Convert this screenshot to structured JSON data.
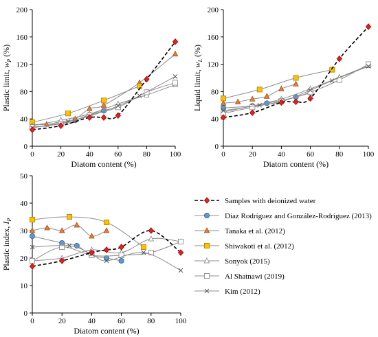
{
  "series_styles": [
    {
      "name": "Samples with deionized water",
      "color": "#000000",
      "marker_fill": "#e8201e",
      "marker_stroke": "#a00000",
      "marker": "diamond",
      "dashed": true
    },
    {
      "name": "Díaz Rodríguez and González-Rodríguez (2013)",
      "color": "#8c8c8c",
      "marker_fill": "#5b9bd5",
      "marker_stroke": "#2e5f8f",
      "marker": "circle",
      "dashed": false
    },
    {
      "name": "Tanaka et al. (2012)",
      "color": "#8c8c8c",
      "marker_fill": "#ed7d31",
      "marker_stroke": "#9c4a14",
      "marker": "triangle",
      "dashed": false
    },
    {
      "name": "Shiwakoti et al. (2012)",
      "color": "#8c8c8c",
      "marker_fill": "#ffc000",
      "marker_stroke": "#b07f00",
      "marker": "square",
      "dashed": false
    },
    {
      "name": "Sonyok (2015)",
      "color": "#8c8c8c",
      "marker_fill": "#ffffff",
      "marker_stroke": "#7f7f7f",
      "marker": "triangle-open",
      "dashed": false
    },
    {
      "name": "Al Shatnawi (2019)",
      "color": "#8c8c8c",
      "marker_fill": "#ffffff",
      "marker_stroke": "#7f7f7f",
      "marker": "square-open",
      "dashed": false
    },
    {
      "name": "Kim (2012)",
      "color": "#8c8c8c",
      "marker_fill": "none",
      "marker_stroke": "#595959",
      "marker": "x",
      "dashed": false
    }
  ],
  "chart_data": [
    {
      "type": "line",
      "xlabel": "Diatom content (%)",
      "ylabel_main": "Plastic limit, ",
      "ylabel_symbol": "w",
      "ylabel_sub": "P",
      "ylabel_unit": " (%)",
      "xlim": [
        0,
        100
      ],
      "ylim": [
        0,
        200
      ],
      "xticks": [
        "0",
        "20",
        "40",
        "60",
        "80",
        "100"
      ],
      "yticks": [
        "0",
        "40",
        "80",
        "120",
        "160",
        "200"
      ],
      "series": [
        {
          "style": 0,
          "points": [
            [
              0,
              24
            ],
            [
              20,
              30
            ],
            [
              40,
              42
            ],
            [
              50,
              42
            ],
            [
              60,
              45
            ],
            [
              80,
              98
            ],
            [
              100,
              153
            ]
          ]
        },
        {
          "style": 1,
          "points": [
            [
              0,
              27
            ],
            [
              20,
              33
            ],
            [
              30,
              38
            ],
            [
              40,
              46
            ],
            [
              50,
              52
            ],
            [
              60,
              58
            ]
          ]
        },
        {
          "style": 2,
          "points": [
            [
              0,
              32
            ],
            [
              10,
              32
            ],
            [
              20,
              36
            ],
            [
              30,
              40
            ],
            [
              40,
              55
            ],
            [
              50,
              60
            ],
            [
              75,
              93
            ],
            [
              100,
              135
            ]
          ]
        },
        {
          "style": 3,
          "points": [
            [
              0,
              35
            ],
            [
              25,
              48
            ],
            [
              50,
              67
            ],
            [
              75,
              88
            ]
          ]
        },
        {
          "style": 4,
          "points": [
            [
              0,
              30
            ],
            [
              20,
              38
            ],
            [
              40,
              47
            ],
            [
              60,
              62
            ],
            [
              80,
              75
            ],
            [
              100,
              90
            ]
          ]
        },
        {
          "style": 5,
          "points": [
            [
              0,
              28
            ],
            [
              20,
              33
            ],
            [
              40,
              45
            ],
            [
              60,
              57
            ],
            [
              80,
              79
            ],
            [
              100,
              93
            ]
          ]
        },
        {
          "style": 6,
          "points": [
            [
              0,
              27
            ],
            [
              25,
              36
            ],
            [
              40,
              44
            ],
            [
              60,
              59
            ],
            [
              75,
              74
            ],
            [
              100,
              102
            ]
          ]
        }
      ]
    },
    {
      "type": "line",
      "xlabel": "Diatom content  (%)",
      "ylabel_main": "Liquid limit, ",
      "ylabel_symbol": "w",
      "ylabel_sub": "L",
      "ylabel_unit": " (%)",
      "xlim": [
        0,
        100
      ],
      "ylim": [
        0,
        200
      ],
      "xticks": [
        "0",
        "20",
        "40",
        "60",
        "80",
        "100"
      ],
      "yticks": [
        "0",
        "40",
        "80",
        "120",
        "160",
        "200"
      ],
      "series": [
        {
          "style": 0,
          "points": [
            [
              0,
              42
            ],
            [
              20,
              49
            ],
            [
              40,
              64
            ],
            [
              50,
              65
            ],
            [
              60,
              70
            ],
            [
              80,
              128
            ],
            [
              100,
              175
            ]
          ]
        },
        {
          "style": 1,
          "points": [
            [
              0,
              56
            ],
            [
              20,
              59
            ],
            [
              30,
              63
            ],
            [
              40,
              67
            ],
            [
              50,
              72
            ],
            [
              60,
              78
            ]
          ]
        },
        {
          "style": 2,
          "points": [
            [
              0,
              63
            ],
            [
              10,
              65
            ],
            [
              20,
              69
            ],
            [
              30,
              73
            ],
            [
              40,
              84
            ],
            [
              50,
              91
            ]
          ]
        },
        {
          "style": 3,
          "points": [
            [
              0,
              70
            ],
            [
              25,
              83
            ],
            [
              50,
              100
            ],
            [
              75,
              112
            ]
          ]
        },
        {
          "style": 4,
          "points": [
            [
              0,
              50
            ],
            [
              20,
              59
            ],
            [
              40,
              69
            ],
            [
              60,
              84
            ],
            [
              80,
              101
            ],
            [
              100,
              118
            ]
          ]
        },
        {
          "style": 5,
          "points": [
            [
              0,
              48
            ],
            [
              20,
              57
            ],
            [
              40,
              66
            ],
            [
              60,
              79
            ],
            [
              80,
              97
            ],
            [
              100,
              120
            ]
          ]
        },
        {
          "style": 6,
          "points": [
            [
              0,
              52
            ],
            [
              25,
              60
            ],
            [
              40,
              65
            ],
            [
              60,
              82
            ],
            [
              75,
              96
            ],
            [
              100,
              117
            ]
          ]
        }
      ]
    },
    {
      "type": "line",
      "xlabel": "Diatom content (%)",
      "ylabel_main": "Plastic index, ",
      "ylabel_symbol": "I",
      "ylabel_sub": "P",
      "ylabel_unit": "",
      "xlim": [
        0,
        100
      ],
      "ylim": [
        0,
        50
      ],
      "xticks": [
        "0",
        "20",
        "40",
        "60",
        "80",
        "100"
      ],
      "yticks": [
        "0",
        "10",
        "20",
        "30",
        "40",
        "50"
      ],
      "series": [
        {
          "style": 0,
          "points": [
            [
              0,
              17
            ],
            [
              20,
              19
            ],
            [
              40,
              22
            ],
            [
              50,
              23
            ],
            [
              60,
              24
            ],
            [
              80,
              30
            ],
            [
              100,
              22
            ]
          ]
        },
        {
          "style": 1,
          "points": [
            [
              0,
              28
            ],
            [
              20,
              25.5
            ],
            [
              30,
              24.5
            ],
            [
              40,
              21
            ],
            [
              50,
              20
            ],
            [
              60,
              19
            ]
          ]
        },
        {
          "style": 2,
          "points": [
            [
              0,
              30
            ],
            [
              10,
              31
            ],
            [
              20,
              30
            ],
            [
              30,
              32
            ],
            [
              40,
              28
            ],
            [
              50,
              30
            ]
          ]
        },
        {
          "style": 3,
          "points": [
            [
              0,
              34
            ],
            [
              25,
              35
            ],
            [
              50,
              33
            ],
            [
              75,
              24
            ]
          ]
        },
        {
          "style": 4,
          "points": [
            [
              0,
              19
            ],
            [
              20,
              20
            ],
            [
              40,
              23
            ],
            [
              60,
              22
            ],
            [
              80,
              27
            ],
            [
              100,
              26
            ]
          ]
        },
        {
          "style": 5,
          "points": [
            [
              0,
              19
            ],
            [
              20,
              24
            ],
            [
              40,
              21
            ],
            [
              60,
              21
            ],
            [
              80,
              22
            ],
            [
              100,
              26
            ]
          ]
        },
        {
          "style": 6,
          "points": [
            [
              0,
              24
            ],
            [
              25,
              24.5
            ],
            [
              40,
              21.5
            ],
            [
              50,
              19
            ],
            [
              75,
              22
            ],
            [
              100,
              15.5
            ]
          ]
        }
      ]
    }
  ],
  "legend": {
    "placement": "bottom-right",
    "entries": [
      0,
      1,
      2,
      3,
      4,
      5,
      6
    ]
  }
}
